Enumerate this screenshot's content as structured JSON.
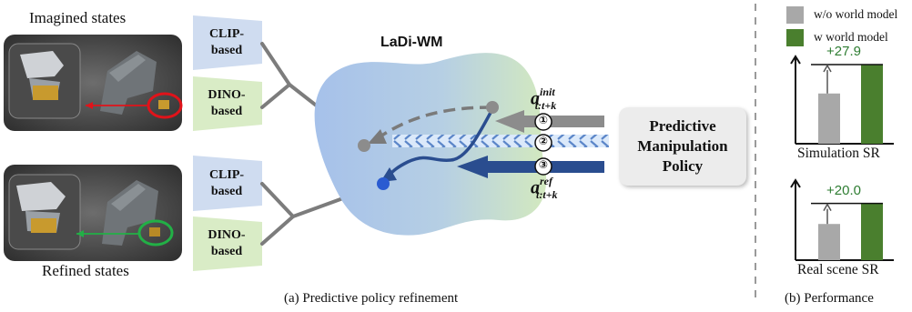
{
  "labels": {
    "imagined_states": "Imagined states",
    "refined_states": "Refined states",
    "model_name": "LaDi-WM",
    "encoders": [
      "CLIP-\nbased",
      "DINO-\nbased",
      "CLIP-\nbased",
      "DINO-\nbased"
    ],
    "policy": "Predictive Manipulation Policy",
    "step_markers": [
      "①",
      "②",
      "③"
    ],
    "action_init": {
      "base": "a",
      "sup": "init",
      "sub": "t:t+k"
    },
    "action_ref": {
      "base": "a",
      "sup": "ref",
      "sub": "t:t+k"
    },
    "caption_a": "(a) Predictive policy refinement",
    "caption_b": "(b) Performance"
  },
  "legend": [
    {
      "label": "w/o world model",
      "color": "#a8a8a8"
    },
    {
      "label": "w world model",
      "color": "#4a7f2e"
    }
  ],
  "colors": {
    "clip": "#cfdcf0",
    "dino": "#d9ecc6",
    "arrow_gray": "#8c8c8c",
    "arrow_blue": "#2a4d8f",
    "blob_left": "#a9c3ea",
    "blob_right": "#cfe6b8"
  },
  "chart_data": [
    {
      "type": "bar",
      "categories": [
        "w/o world model",
        "w world model"
      ],
      "title": "",
      "xlabel": "Simulation SR",
      "ylabel": "",
      "delta_label": "+27.9",
      "relative_values": [
        0.47,
        0.74
      ]
    },
    {
      "type": "bar",
      "categories": [
        "w/o world model",
        "w world model"
      ],
      "title": "",
      "xlabel": "Real scene SR",
      "ylabel": "",
      "delta_label": "+20.0",
      "relative_values": [
        0.37,
        0.58
      ]
    }
  ]
}
